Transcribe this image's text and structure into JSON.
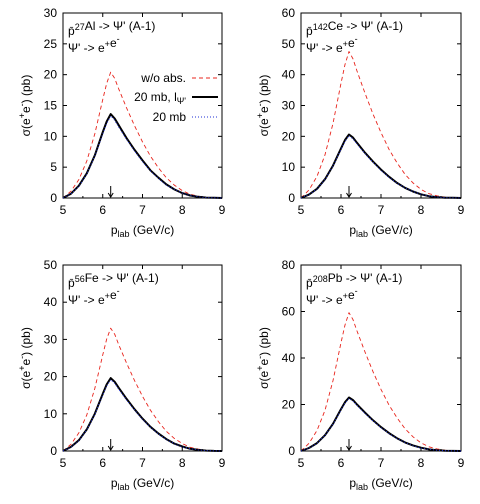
{
  "chart_data": [
    {
      "type": "line",
      "title_lines": [
        "p̄²⁷Al -> Ψ' (A-1)",
        "Ψ' -> e⁺e⁻"
      ],
      "title_parts": [
        [
          {
            "t": "p̄"
          },
          {
            "t": "27",
            "sup": true
          },
          {
            "t": "Al -> Ψ' (A-1)"
          }
        ],
        [
          {
            "t": "Ψ' -> e"
          },
          {
            "t": "+",
            "sup": true
          },
          {
            "t": "e"
          },
          {
            "t": "-",
            "sup": true
          }
        ]
      ],
      "xlabel": "plab (GeV/c)",
      "ylabel": "σ(e+e-) (pb)",
      "xlim": [
        5,
        9
      ],
      "ylim": [
        0,
        30
      ],
      "xticks": [
        5,
        6,
        7,
        8,
        9
      ],
      "yticks": [
        0,
        5,
        10,
        15,
        20,
        25,
        30
      ],
      "marker_x": 6.2,
      "legend": {
        "position": "top-right",
        "entries": [
          "w/o abs.",
          "20 mb, lΨ'",
          "20 mb"
        ]
      },
      "series": [
        {
          "name": "w/o abs.",
          "style": "red-dashed",
          "peak": 20.4,
          "x": [
            5.0,
            5.2,
            5.4,
            5.6,
            5.8,
            6.0,
            6.1,
            6.2,
            6.3,
            6.4,
            6.6,
            6.8,
            7.0,
            7.2,
            7.4,
            7.6,
            7.8,
            8.0,
            8.2,
            8.4,
            8.6,
            8.8,
            9.0
          ],
          "y": [
            0.0,
            1.1,
            3.0,
            6.0,
            10.4,
            16.0,
            18.6,
            20.4,
            19.4,
            17.7,
            14.6,
            11.7,
            9.1,
            6.8,
            4.9,
            3.3,
            2.1,
            1.2,
            0.6,
            0.3,
            0.1,
            0.05,
            0.0
          ]
        },
        {
          "name": "20 mb, lΨ'",
          "style": "black-solid",
          "peak": 13.6,
          "x": [
            5.0,
            5.2,
            5.4,
            5.6,
            5.8,
            6.0,
            6.1,
            6.2,
            6.3,
            6.4,
            6.6,
            6.8,
            7.0,
            7.2,
            7.4,
            7.6,
            7.8,
            8.0,
            8.2,
            8.4,
            8.6,
            8.8,
            9.0
          ],
          "y": [
            0.0,
            0.7,
            2.0,
            4.0,
            6.9,
            10.7,
            12.4,
            13.6,
            12.9,
            11.8,
            9.7,
            7.8,
            6.1,
            4.5,
            3.3,
            2.2,
            1.4,
            0.8,
            0.4,
            0.2,
            0.07,
            0.03,
            0.0
          ]
        },
        {
          "name": "20 mb",
          "style": "blue-dotted",
          "peak": 13.3,
          "x": [
            5.0,
            5.2,
            5.4,
            5.6,
            5.8,
            6.0,
            6.1,
            6.2,
            6.3,
            6.4,
            6.6,
            6.8,
            7.0,
            7.2,
            7.4,
            7.6,
            7.8,
            8.0,
            8.2,
            8.4,
            8.6,
            8.8,
            9.0
          ],
          "y": [
            0.0,
            0.7,
            1.9,
            3.9,
            6.8,
            10.4,
            12.1,
            13.3,
            12.6,
            11.5,
            9.5,
            7.6,
            5.9,
            4.4,
            3.2,
            2.1,
            1.4,
            0.8,
            0.4,
            0.2,
            0.07,
            0.03,
            0.0
          ]
        }
      ]
    },
    {
      "type": "line",
      "title_lines": [
        "p̄¹⁴²Ce -> Ψ' (A-1)",
        "Ψ' -> e⁺e⁻"
      ],
      "title_parts": [
        [
          {
            "t": "p̄"
          },
          {
            "t": "142",
            "sup": true
          },
          {
            "t": "Ce -> Ψ' (A-1)"
          }
        ],
        [
          {
            "t": "Ψ' -> e"
          },
          {
            "t": "+",
            "sup": true
          },
          {
            "t": "e"
          },
          {
            "t": "-",
            "sup": true
          }
        ]
      ],
      "xlabel": "plab (GeV/c)",
      "ylabel": "σ(e+e-) (pb)",
      "xlim": [
        5,
        9
      ],
      "ylim": [
        0,
        60
      ],
      "xticks": [
        5,
        6,
        7,
        8,
        9
      ],
      "yticks": [
        0,
        10,
        20,
        30,
        40,
        50,
        60
      ],
      "marker_x": 6.2,
      "series": [
        {
          "name": "w/o abs.",
          "style": "red-dashed",
          "peak": 47.5,
          "x": [
            5.0,
            5.2,
            5.4,
            5.6,
            5.8,
            6.0,
            6.1,
            6.2,
            6.3,
            6.4,
            6.6,
            6.8,
            7.0,
            7.2,
            7.4,
            7.6,
            7.8,
            8.0,
            8.2,
            8.4,
            8.6,
            8.8,
            9.0
          ],
          "y": [
            0.0,
            2.6,
            7.0,
            14.0,
            24.2,
            37.2,
            43.3,
            47.5,
            45.1,
            41.2,
            34.0,
            27.2,
            21.2,
            15.8,
            11.4,
            7.7,
            4.9,
            2.8,
            1.4,
            0.7,
            0.25,
            0.1,
            0.0
          ]
        },
        {
          "name": "20 mb, lΨ'",
          "style": "black-solid",
          "peak": 20.6,
          "x": [
            5.0,
            5.2,
            5.4,
            5.6,
            5.8,
            6.0,
            6.1,
            6.2,
            6.3,
            6.4,
            6.6,
            6.8,
            7.0,
            7.2,
            7.4,
            7.6,
            7.8,
            8.0,
            8.2,
            8.4,
            8.6,
            8.8,
            9.0
          ],
          "y": [
            0.0,
            1.1,
            3.0,
            6.1,
            10.5,
            16.1,
            18.8,
            20.6,
            19.6,
            17.9,
            14.7,
            11.8,
            9.2,
            6.9,
            4.9,
            3.3,
            2.1,
            1.2,
            0.6,
            0.3,
            0.1,
            0.05,
            0.0
          ]
        },
        {
          "name": "20 mb",
          "style": "blue-dotted",
          "peak": 20.2,
          "x": [
            5.0,
            5.2,
            5.4,
            5.6,
            5.8,
            6.0,
            6.1,
            6.2,
            6.3,
            6.4,
            6.6,
            6.8,
            7.0,
            7.2,
            7.4,
            7.6,
            7.8,
            8.0,
            8.2,
            8.4,
            8.6,
            8.8,
            9.0
          ],
          "y": [
            0.0,
            1.1,
            2.9,
            6.0,
            10.3,
            15.8,
            18.4,
            20.2,
            19.2,
            17.5,
            14.4,
            11.6,
            9.0,
            6.7,
            4.8,
            3.3,
            2.1,
            1.2,
            0.6,
            0.3,
            0.1,
            0.05,
            0.0
          ]
        }
      ]
    },
    {
      "type": "line",
      "title_lines": [
        "p̄⁵⁶Fe -> Ψ' (A-1)",
        "Ψ' -> e⁺e⁻"
      ],
      "title_parts": [
        [
          {
            "t": "p̄"
          },
          {
            "t": "56",
            "sup": true
          },
          {
            "t": "Fe -> Ψ' (A-1)"
          }
        ],
        [
          {
            "t": "Ψ' -> e"
          },
          {
            "t": "+",
            "sup": true
          },
          {
            "t": "e"
          },
          {
            "t": "-",
            "sup": true
          }
        ]
      ],
      "xlabel": "plab (GeV/c)",
      "ylabel": "σ(e+e-) (pb)",
      "xlim": [
        5,
        9
      ],
      "ylim": [
        0,
        50
      ],
      "xticks": [
        5,
        6,
        7,
        8,
        9
      ],
      "yticks": [
        0,
        10,
        20,
        30,
        40,
        50
      ],
      "marker_x": 6.2,
      "series": [
        {
          "name": "w/o abs.",
          "style": "red-dashed",
          "peak": 33.0,
          "x": [
            5.0,
            5.2,
            5.4,
            5.6,
            5.8,
            6.0,
            6.1,
            6.2,
            6.3,
            6.4,
            6.6,
            6.8,
            7.0,
            7.2,
            7.4,
            7.6,
            7.8,
            8.0,
            8.2,
            8.4,
            8.6,
            8.8,
            9.0
          ],
          "y": [
            0.0,
            1.8,
            4.9,
            9.7,
            16.8,
            25.9,
            30.1,
            33.0,
            31.4,
            28.6,
            23.6,
            18.9,
            14.7,
            11.0,
            7.9,
            5.3,
            3.4,
            2.0,
            1.0,
            0.5,
            0.17,
            0.07,
            0.0
          ]
        },
        {
          "name": "20 mb, lΨ'",
          "style": "black-solid",
          "peak": 19.6,
          "x": [
            5.0,
            5.2,
            5.4,
            5.6,
            5.8,
            6.0,
            6.1,
            6.2,
            6.3,
            6.4,
            6.6,
            6.8,
            7.0,
            7.2,
            7.4,
            7.6,
            7.8,
            8.0,
            8.2,
            8.4,
            8.6,
            8.8,
            9.0
          ],
          "y": [
            0.0,
            1.1,
            2.9,
            5.8,
            10.0,
            15.4,
            17.9,
            19.6,
            18.6,
            17.0,
            14.0,
            11.2,
            8.7,
            6.5,
            4.7,
            3.2,
            2.0,
            1.2,
            0.6,
            0.3,
            0.1,
            0.04,
            0.0
          ]
        },
        {
          "name": "20 mb",
          "style": "blue-dotted",
          "peak": 19.2,
          "x": [
            5.0,
            5.2,
            5.4,
            5.6,
            5.8,
            6.0,
            6.1,
            6.2,
            6.3,
            6.4,
            6.6,
            6.8,
            7.0,
            7.2,
            7.4,
            7.6,
            7.8,
            8.0,
            8.2,
            8.4,
            8.6,
            8.8,
            9.0
          ],
          "y": [
            0.0,
            1.0,
            2.8,
            5.7,
            9.8,
            15.1,
            17.5,
            19.2,
            18.2,
            16.6,
            13.7,
            11.0,
            8.5,
            6.4,
            4.6,
            3.1,
            2.0,
            1.1,
            0.6,
            0.3,
            0.1,
            0.04,
            0.0
          ]
        }
      ]
    },
    {
      "type": "line",
      "title_lines": [
        "p̄²⁰⁸Pb -> Ψ' (A-1)",
        "Ψ' -> e⁺e⁻"
      ],
      "title_parts": [
        [
          {
            "t": "p̄"
          },
          {
            "t": "208",
            "sup": true
          },
          {
            "t": "Pb -> Ψ' (A-1)"
          }
        ],
        [
          {
            "t": "Ψ' -> e"
          },
          {
            "t": "+",
            "sup": true
          },
          {
            "t": "e"
          },
          {
            "t": "-",
            "sup": true
          }
        ]
      ],
      "xlabel": "plab (GeV/c)",
      "ylabel": "σ(e+e-) (pb)",
      "xlim": [
        5,
        9
      ],
      "ylim": [
        0,
        80
      ],
      "xticks": [
        5,
        6,
        7,
        8,
        9
      ],
      "yticks": [
        0,
        20,
        40,
        60,
        80
      ],
      "marker_x": 6.2,
      "series": [
        {
          "name": "w/o abs.",
          "style": "red-dashed",
          "peak": 59.5,
          "x": [
            5.0,
            5.2,
            5.4,
            5.6,
            5.8,
            6.0,
            6.1,
            6.2,
            6.3,
            6.4,
            6.6,
            6.8,
            7.0,
            7.2,
            7.4,
            7.6,
            7.8,
            8.0,
            8.2,
            8.4,
            8.6,
            8.8,
            9.0
          ],
          "y": [
            0.0,
            3.3,
            8.8,
            17.5,
            30.3,
            46.6,
            54.2,
            59.5,
            56.5,
            51.6,
            42.6,
            34.1,
            26.5,
            19.8,
            14.3,
            9.6,
            6.1,
            3.5,
            1.8,
            0.9,
            0.3,
            0.12,
            0.0
          ]
        },
        {
          "name": "20 mb, lΨ'",
          "style": "black-solid",
          "peak": 23.0,
          "x": [
            5.0,
            5.2,
            5.4,
            5.6,
            5.8,
            6.0,
            6.1,
            6.2,
            6.3,
            6.4,
            6.6,
            6.8,
            7.0,
            7.2,
            7.4,
            7.6,
            7.8,
            8.0,
            8.2,
            8.4,
            8.6,
            8.8,
            9.0
          ],
          "y": [
            0.0,
            1.3,
            3.4,
            6.8,
            11.7,
            18.0,
            21.0,
            23.0,
            21.9,
            20.0,
            16.5,
            13.2,
            10.3,
            7.7,
            5.5,
            3.7,
            2.4,
            1.4,
            0.7,
            0.35,
            0.12,
            0.05,
            0.0
          ]
        },
        {
          "name": "20 mb",
          "style": "blue-dotted",
          "peak": 22.6,
          "x": [
            5.0,
            5.2,
            5.4,
            5.6,
            5.8,
            6.0,
            6.1,
            6.2,
            6.3,
            6.4,
            6.6,
            6.8,
            7.0,
            7.2,
            7.4,
            7.6,
            7.8,
            8.0,
            8.2,
            8.4,
            8.6,
            8.8,
            9.0
          ],
          "y": [
            0.0,
            1.2,
            3.3,
            6.7,
            11.5,
            17.7,
            20.6,
            22.6,
            21.5,
            19.6,
            16.2,
            13.0,
            10.1,
            7.5,
            5.4,
            3.7,
            2.3,
            1.3,
            0.7,
            0.35,
            0.12,
            0.05,
            0.0
          ]
        }
      ]
    }
  ]
}
